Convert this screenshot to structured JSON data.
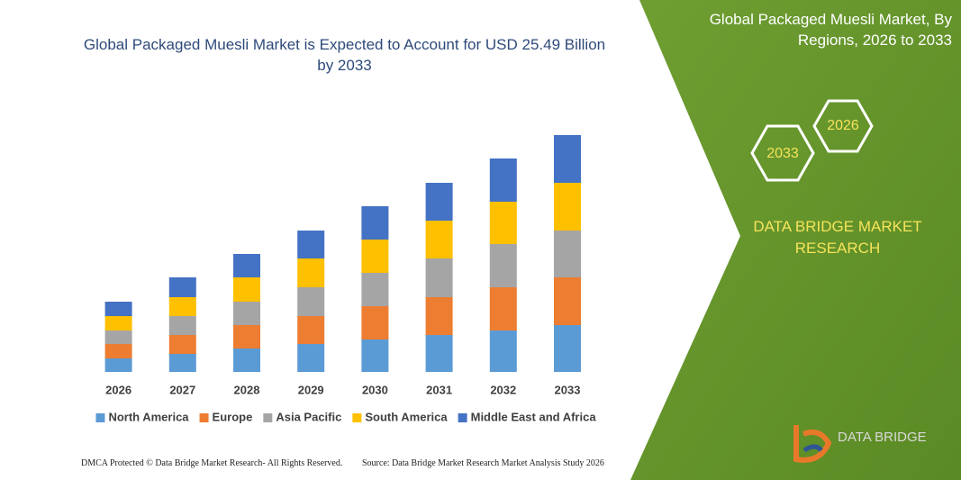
{
  "chart_data": {
    "type": "bar",
    "stacked": true,
    "title": "Global Packaged Muesli Market is Expected to Account for USD 25.49 Billion by 2033",
    "categories": [
      "2026",
      "2027",
      "2028",
      "2029",
      "2030",
      "2031",
      "2032",
      "2033"
    ],
    "series": [
      {
        "name": "North America",
        "color": "#5b9bd5",
        "values": [
          15,
          20,
          26,
          31,
          36,
          41,
          46,
          52
        ]
      },
      {
        "name": "Europe",
        "color": "#ed7d31",
        "values": [
          16,
          21,
          26,
          31,
          37,
          42,
          48,
          53
        ]
      },
      {
        "name": "Asia Pacific",
        "color": "#a5a5a5",
        "values": [
          15,
          21,
          26,
          32,
          37,
          43,
          48,
          52
        ]
      },
      {
        "name": "South America",
        "color": "#ffc000",
        "values": [
          16,
          21,
          27,
          32,
          37,
          42,
          47,
          53
        ]
      },
      {
        "name": "Middle East and Africa",
        "color": "#4472c4",
        "values": [
          16,
          22,
          26,
          31,
          37,
          42,
          48,
          53
        ]
      }
    ]
  },
  "side_panel": {
    "title": "Global Packaged Muesli Market, By Regions, 2026 to 2033",
    "hexagons": [
      "2033",
      "2026"
    ],
    "tagline": "DATA BRIDGE MARKET RESEARCH",
    "logo": "DATA BRIDGE"
  },
  "footer": {
    "left": "DMCA Protected © Data Bridge Market Research-  All Rights Reserved.",
    "right": "Source: Data Bridge Market Research  Market Analysis Study 2026"
  }
}
